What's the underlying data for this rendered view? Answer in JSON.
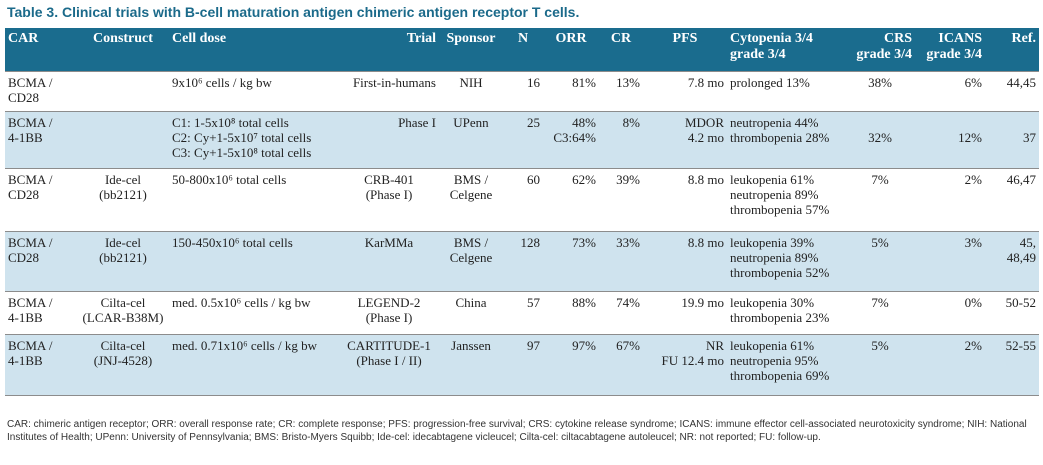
{
  "caption": {
    "label": "Table 3.",
    "text": "Clinical trials with B-cell maturation antigen chimeric antigen receptor T cells."
  },
  "headers": {
    "car": "CAR",
    "construct": "Construct",
    "dose": "Cell dose",
    "trial": "Trial",
    "sponsor": "Sponsor",
    "n": "N",
    "orr": "ORR",
    "cr": "CR",
    "pfs": "PFS",
    "cyto": "Cytopenia 3/4\ngrade 3/4",
    "crs": "CRS\ngrade 3/4",
    "icans": "ICANS\ngrade 3/4",
    "ref": "Ref."
  },
  "rows": [
    {
      "car": "BCMA /\nCD28",
      "construct": "",
      "dose": "9x10⁶ cells / kg bw",
      "trial": "First-in-humans",
      "sponsor": "NIH",
      "n": "16",
      "orr": "81%",
      "cr": "13%",
      "pfs": "7.8 mo",
      "cyto": "prolonged 13%",
      "crs": "38%",
      "icans": "6%",
      "ref": "44,45"
    },
    {
      "car": "BCMA /\n4-1BB",
      "construct": "",
      "dose": "C1: 1-5x10⁸ total cells\nC2: Cy+1-5x10⁷ total cells\nC3: Cy+1-5x10⁸ total cells",
      "trial": "Phase I",
      "sponsor": "UPenn",
      "n": "25",
      "orr": "48%\nC3:64%",
      "cr": "8%",
      "pfs": "MDOR\n4.2 mo",
      "cyto": "neutropenia 44%\nthrombopenia 28%",
      "crs": "\n32%",
      "icans": "\n12%",
      "ref": "\n37"
    },
    {
      "car": "BCMA /\nCD28",
      "construct": "Ide-cel\n(bb2121)",
      "dose": "50-800x10⁶ total cells",
      "trial": "CRB-401\n(Phase I)",
      "sponsor": "BMS /\nCelgene",
      "n": "60",
      "orr": "62%",
      "cr": "39%",
      "pfs": "8.8 mo",
      "cyto": "leukopenia 61%\nneutropenia 89%\nthrombopenia 57%",
      "crs": "7%",
      "icans": "2%",
      "ref": "46,47"
    },
    {
      "car": "BCMA /\nCD28",
      "construct": "Ide-cel\n(bb2121)",
      "dose": "150-450x10⁶ total cells",
      "trial": "KarMMa",
      "sponsor": "BMS /\nCelgene",
      "n": "128",
      "orr": "73%",
      "cr": "33%",
      "pfs": "8.8 mo",
      "cyto": "leukopenia 39%\nneutropenia 89%\nthrombopenia 52%",
      "crs": "5%",
      "icans": "3%",
      "ref": "45, 48,49"
    },
    {
      "car": "BCMA /\n4-1BB",
      "construct": "Cilta-cel\n(LCAR-B38M)",
      "dose": "med. 0.5x10⁶ cells / kg bw",
      "trial": "LEGEND-2\n(Phase I)",
      "sponsor": "China",
      "n": "57",
      "orr": "88%",
      "cr": "74%",
      "pfs": "19.9 mo",
      "cyto": "leukopenia 30%\nthrombopenia 23%",
      "crs": "7%",
      "icans": "0%",
      "ref": "50-52"
    },
    {
      "car": "BCMA /\n4-1BB",
      "construct": "Cilta-cel\n(JNJ-4528)",
      "dose": "med. 0.71x10⁶ cells / kg bw",
      "trial": "CARTITUDE-1\n(Phase I / II)",
      "sponsor": "Janssen",
      "n": "97",
      "orr": "97%",
      "cr": "67%",
      "pfs": "NR\nFU 12.4 mo",
      "cyto": "leukopenia 61%\nneutropenia 95%\nthrombopenia 69%",
      "crs": "5%",
      "icans": "2%",
      "ref": "52-55"
    }
  ],
  "footnote": "CAR: chimeric antigen receptor; ORR: overall response rate; CR: complete response; PFS: progression-free survival; CRS: cytokine release syndrome; ICANS: immune effector cell-associated neurotoxicity syndrome; NIH: National Institutes of Health; UPenn: University of Pennsylvania; BMS: Bristo-Myers Squibb; Ide-cel: idecabtagene vicleucel; Cilta-cel: ciltacabtagene autoleucel; NR: not reported; FU: follow-up.",
  "colors": {
    "header_bg": "#1a6c8e",
    "caption": "#1b6a8a",
    "shaded_row": "#cfe3ee"
  }
}
